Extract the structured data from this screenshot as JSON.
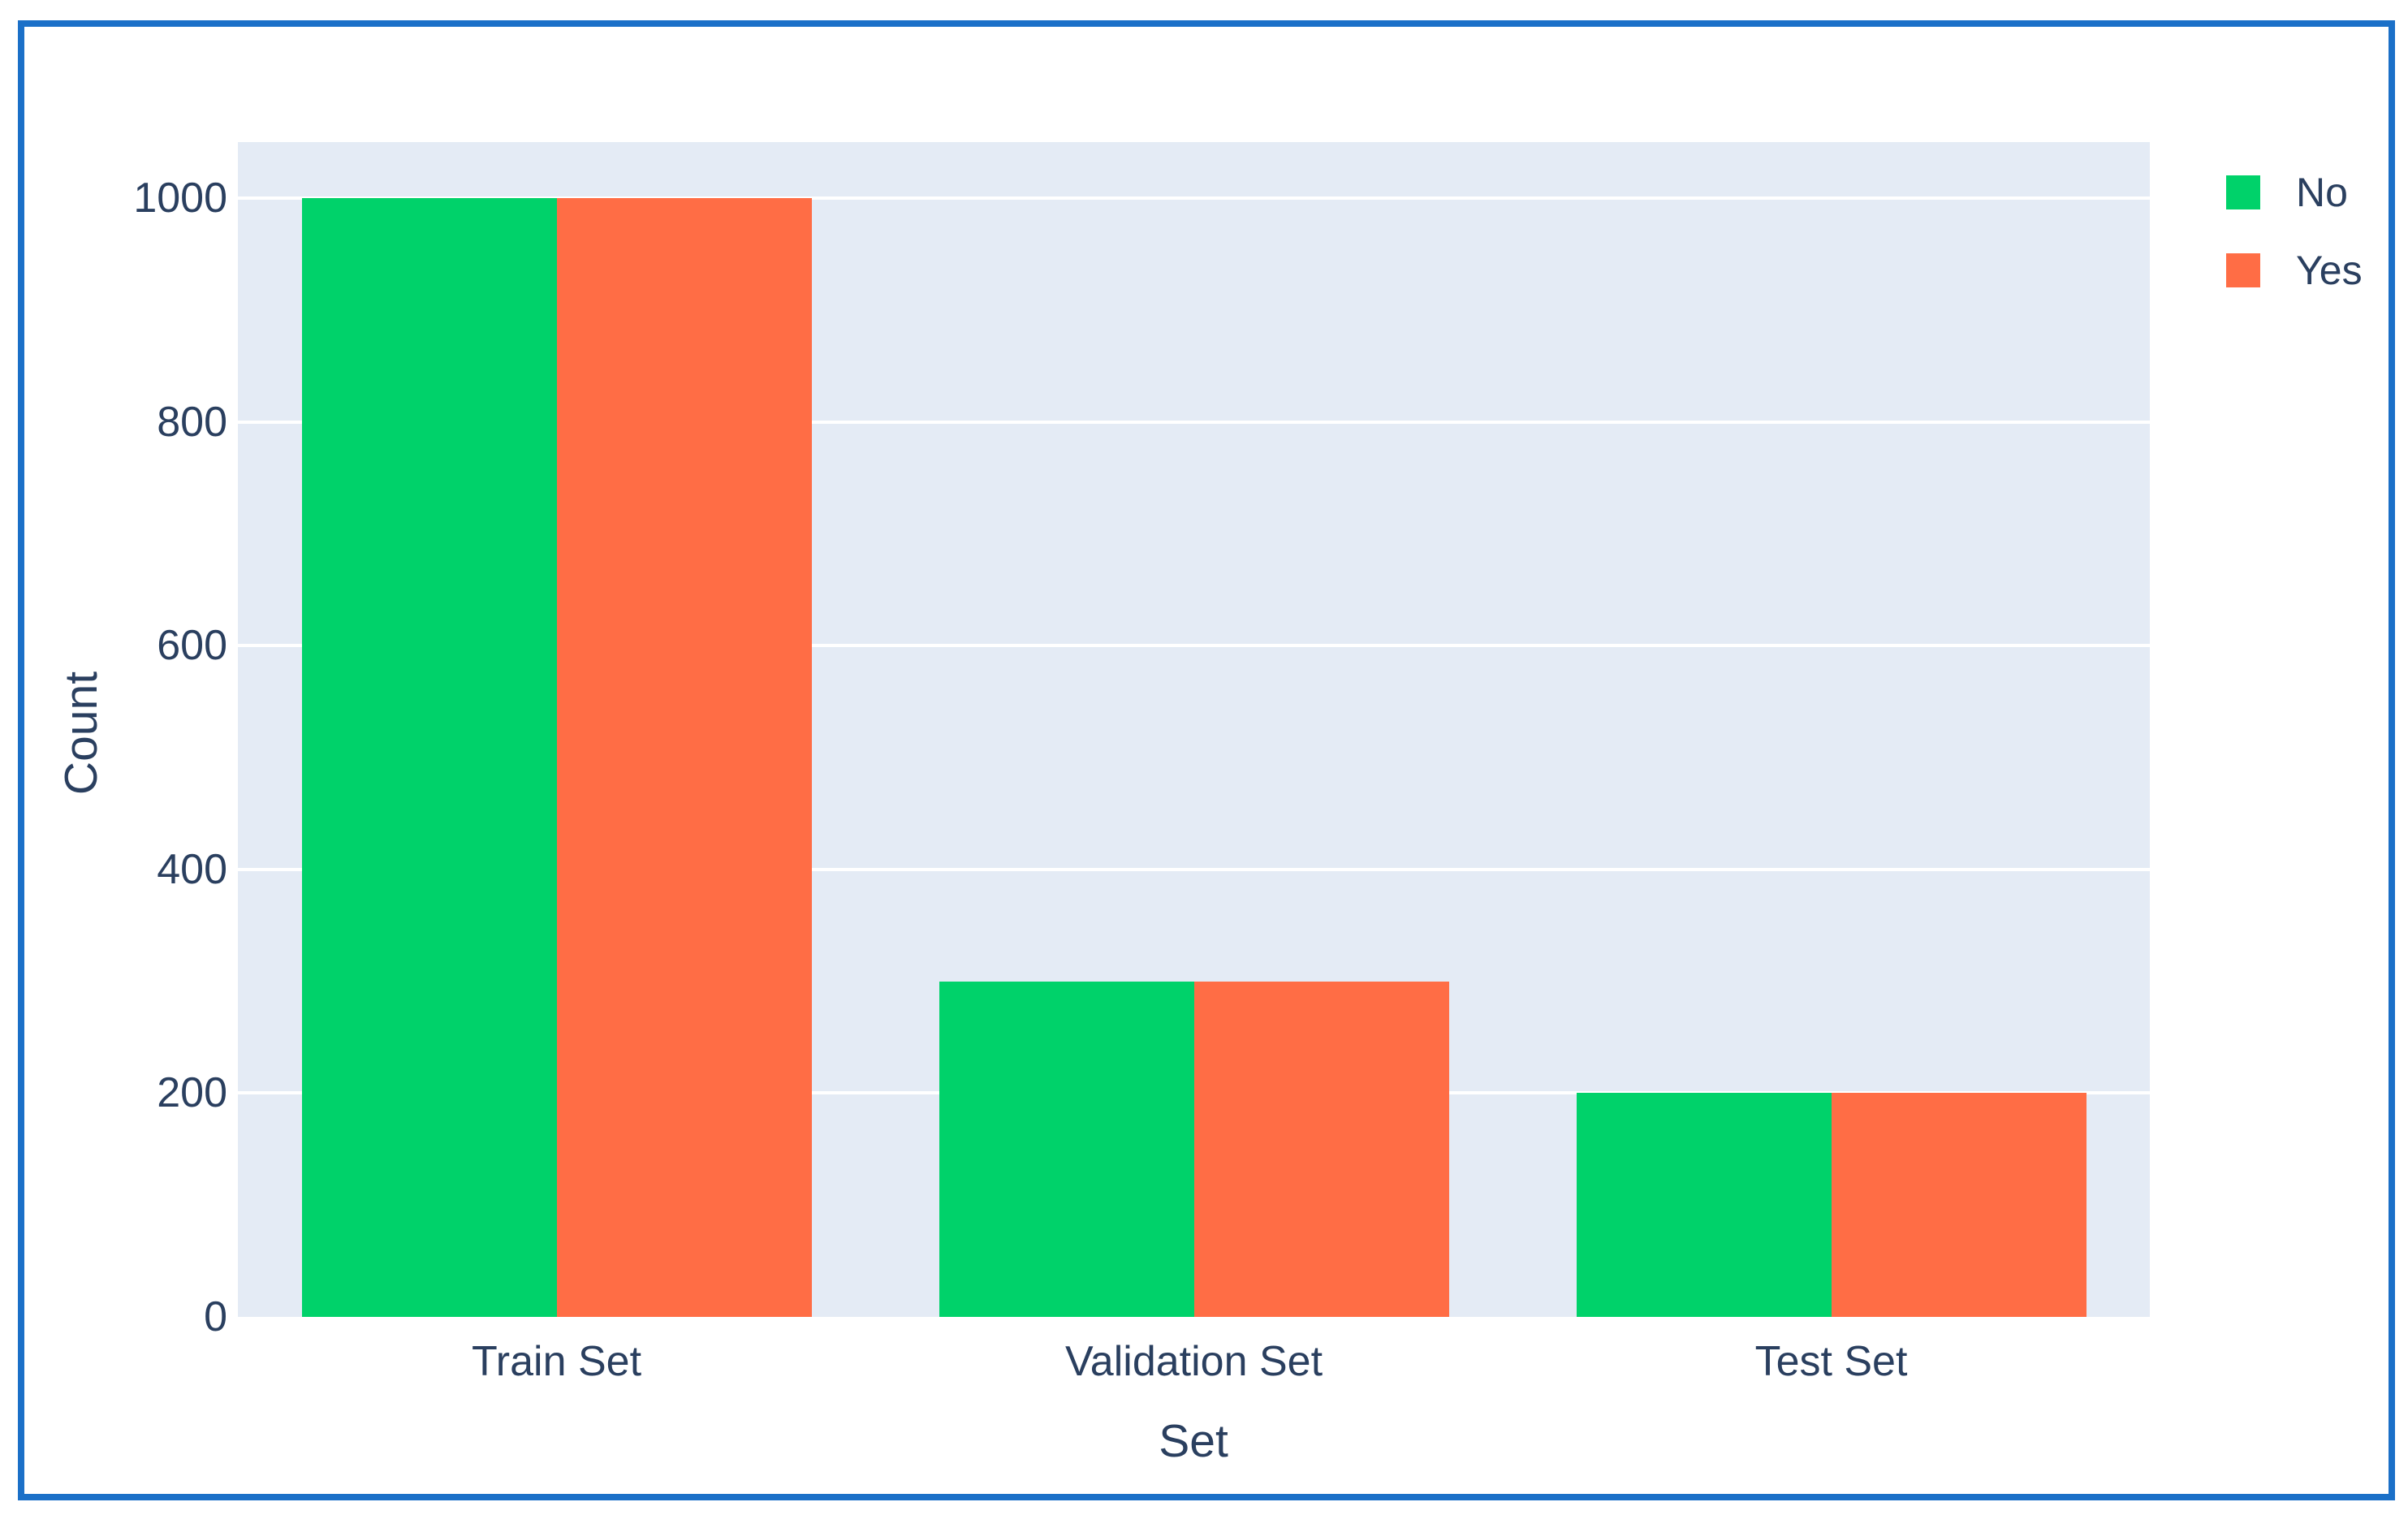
{
  "frame": {
    "border_color": "#1b70c8",
    "background_color": "#ffffff"
  },
  "chart_data": {
    "type": "bar",
    "title": "",
    "categories": [
      "Train Set",
      "Validation Set",
      "Test Set"
    ],
    "series": [
      {
        "name": "No",
        "color": "#00d26a",
        "values": [
          1000,
          300,
          200
        ]
      },
      {
        "name": "Yes",
        "color": "#ff6d45",
        "values": [
          1000,
          300,
          200
        ]
      }
    ],
    "xlabel": "Set",
    "ylabel": "Count",
    "yticks": [
      0,
      200,
      400,
      600,
      800,
      1000
    ],
    "ylim": [
      0,
      1050
    ],
    "grid": "horizontal",
    "gridline_color": "#ffffff",
    "plot_background": "#e4ebf5",
    "text_color": "#2a3f5f",
    "legend_position": "top-right",
    "bar_gap": 0.2
  }
}
